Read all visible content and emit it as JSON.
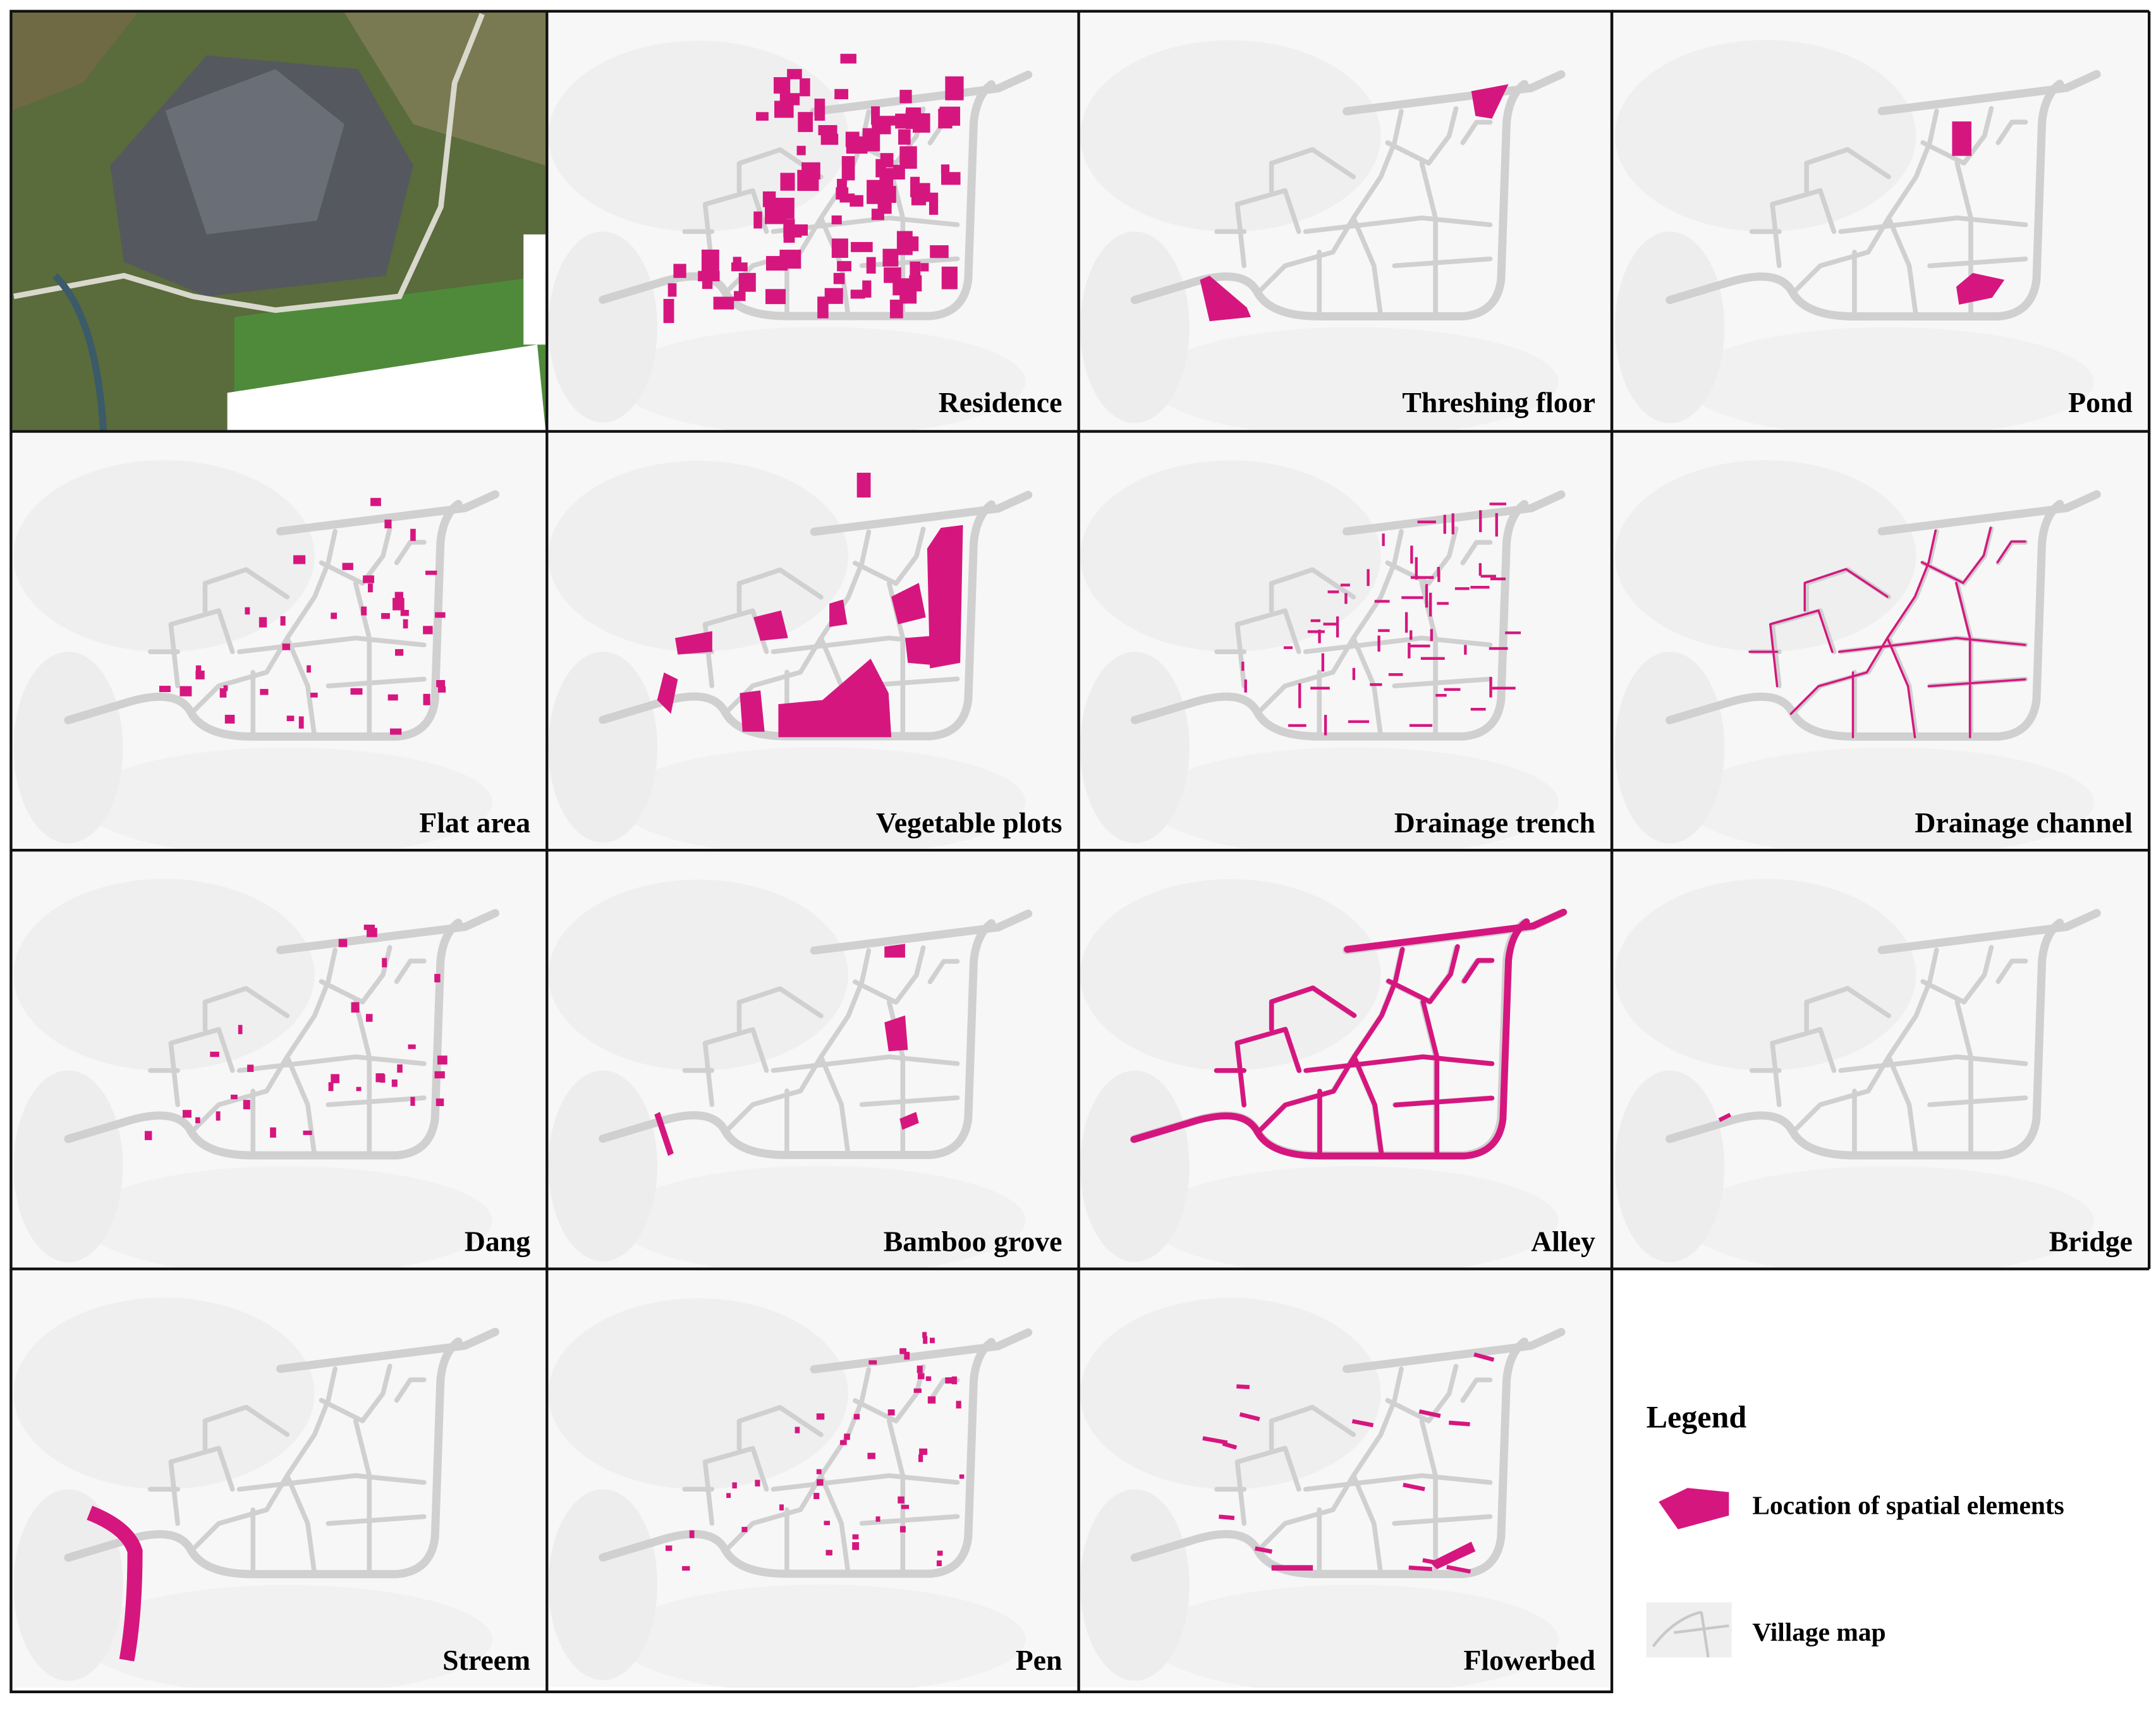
{
  "panels": [
    {
      "label": "Residence"
    },
    {
      "label": "Threshing floor"
    },
    {
      "label": "Pond"
    },
    {
      "label": "Flat area"
    },
    {
      "label": "Vegetable plots"
    },
    {
      "label": "Drainage trench"
    },
    {
      "label": "Drainage channel"
    },
    {
      "label": "Dang"
    },
    {
      "label": "Bamboo grove"
    },
    {
      "label": "Alley"
    },
    {
      "label": "Bridge"
    },
    {
      "label": "Streem"
    },
    {
      "label": "Pen"
    },
    {
      "label": "Flowerbed"
    }
  ],
  "legend": {
    "title": "Legend",
    "items": [
      "Location of spatial elements",
      "Village map"
    ]
  }
}
